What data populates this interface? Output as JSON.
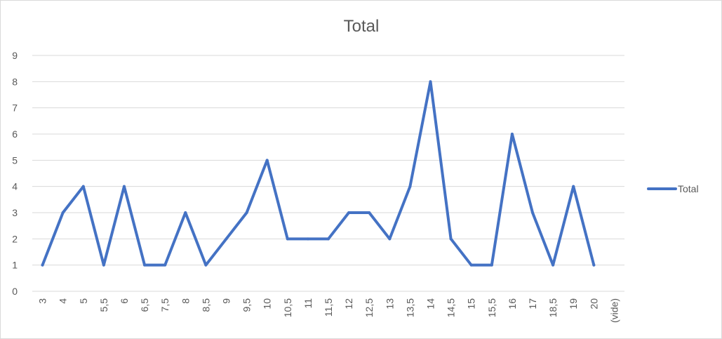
{
  "chart_data": {
    "type": "line",
    "title": "Total",
    "xlabel": "",
    "ylabel": "",
    "ylim": [
      0,
      9
    ],
    "yticks": [
      0,
      1,
      2,
      3,
      4,
      5,
      6,
      7,
      8,
      9
    ],
    "grid": true,
    "legend_position": "right",
    "categories": [
      "3",
      "4",
      "5",
      "5,5",
      "6",
      "6,5",
      "7,5",
      "8",
      "8,5",
      "9",
      "9,5",
      "10",
      "10,5",
      "11",
      "11,5",
      "12",
      "12,5",
      "13",
      "13,5",
      "14",
      "14,5",
      "15",
      "15,5",
      "16",
      "17",
      "18,5",
      "19",
      "20",
      "(vide)"
    ],
    "series": [
      {
        "name": "Total",
        "color": "#4472c4",
        "values": [
          1,
          3,
          4,
          1,
          4,
          1,
          1,
          3,
          1,
          2,
          3,
          5,
          2,
          2,
          2,
          3,
          3,
          2,
          4,
          8,
          2,
          1,
          1,
          6,
          3,
          1,
          4,
          1,
          null
        ]
      }
    ],
    "colors": {
      "gridline": "#d9d9d9",
      "axis_text": "#595959",
      "title_text": "#595959"
    }
  }
}
